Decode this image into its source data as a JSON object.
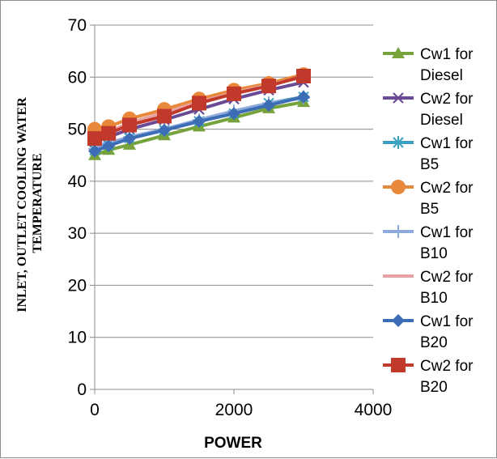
{
  "chart_data": {
    "type": "line",
    "title": "",
    "xlabel": "POWER",
    "ylabel_lines": [
      "INLET, OUTLET COOLING WATER",
      "TEMPERATURE"
    ],
    "xlim": [
      0,
      4000
    ],
    "ylim": [
      0,
      70
    ],
    "x_ticks": [
      0,
      2000,
      4000
    ],
    "y_ticks": [
      0,
      10,
      20,
      30,
      40,
      50,
      60,
      70
    ],
    "grid": "horizontal",
    "legend_position": "right",
    "x": [
      0,
      200,
      500,
      1000,
      1500,
      2000,
      2500,
      3000
    ],
    "series": [
      {
        "name": "Cw1 for Diesel",
        "label_lines": [
          "Cw1 for",
          "Diesel"
        ],
        "color": "#77a33c",
        "marker": "triangle",
        "values": [
          45,
          46,
          47,
          48.8,
          50.5,
          52.2,
          54,
          55.2
        ]
      },
      {
        "name": "Cw2 for Diesel",
        "label_lines": [
          "Cw2 for",
          "Diesel"
        ],
        "color": "#6b4a95",
        "marker": "x",
        "values": [
          47.5,
          48.5,
          50,
          51.8,
          53.8,
          55.8,
          57.5,
          59
        ]
      },
      {
        "name": "Cw1 for B5",
        "label_lines": [
          "Cw1 for",
          "B5"
        ],
        "color": "#3aa1bf",
        "marker": "asterisk",
        "values": [
          46,
          47,
          48.3,
          49.8,
          51.5,
          53,
          55,
          56.2
        ]
      },
      {
        "name": "Cw2 for B5",
        "label_lines": [
          "Cw2 for",
          "B5"
        ],
        "color": "#e8883a",
        "marker": "circle",
        "values": [
          50,
          50.5,
          52,
          53.8,
          55.8,
          57.5,
          58.8,
          60.5
        ]
      },
      {
        "name": "Cw1 for B10",
        "label_lines": [
          "Cw1 for",
          "B10"
        ],
        "color": "#8eaadb",
        "marker": "plus",
        "values": [
          46.2,
          47.3,
          48.5,
          50,
          51.8,
          53.5,
          55,
          56
        ]
      },
      {
        "name": "Cw2 for B10",
        "label_lines": [
          "Cw2 for",
          "B10"
        ],
        "color": "#e6a3a1",
        "marker": "dash",
        "values": [
          49,
          49.5,
          51.2,
          53.2,
          55.2,
          57,
          58.5,
          60
        ]
      },
      {
        "name": "Cw1 for B20",
        "label_lines": [
          "Cw1 for",
          "B20"
        ],
        "color": "#3c6db5",
        "marker": "diamond",
        "values": [
          45.8,
          46.8,
          48.2,
          49.8,
          51.5,
          53,
          54.6,
          56.2
        ]
      },
      {
        "name": "Cw2 for B20",
        "label_lines": [
          "Cw2 for",
          "B20"
        ],
        "color": "#c0392b",
        "marker": "square",
        "values": [
          48.2,
          49.2,
          50.8,
          52.5,
          55,
          56.8,
          58.3,
          60.2
        ]
      }
    ]
  }
}
